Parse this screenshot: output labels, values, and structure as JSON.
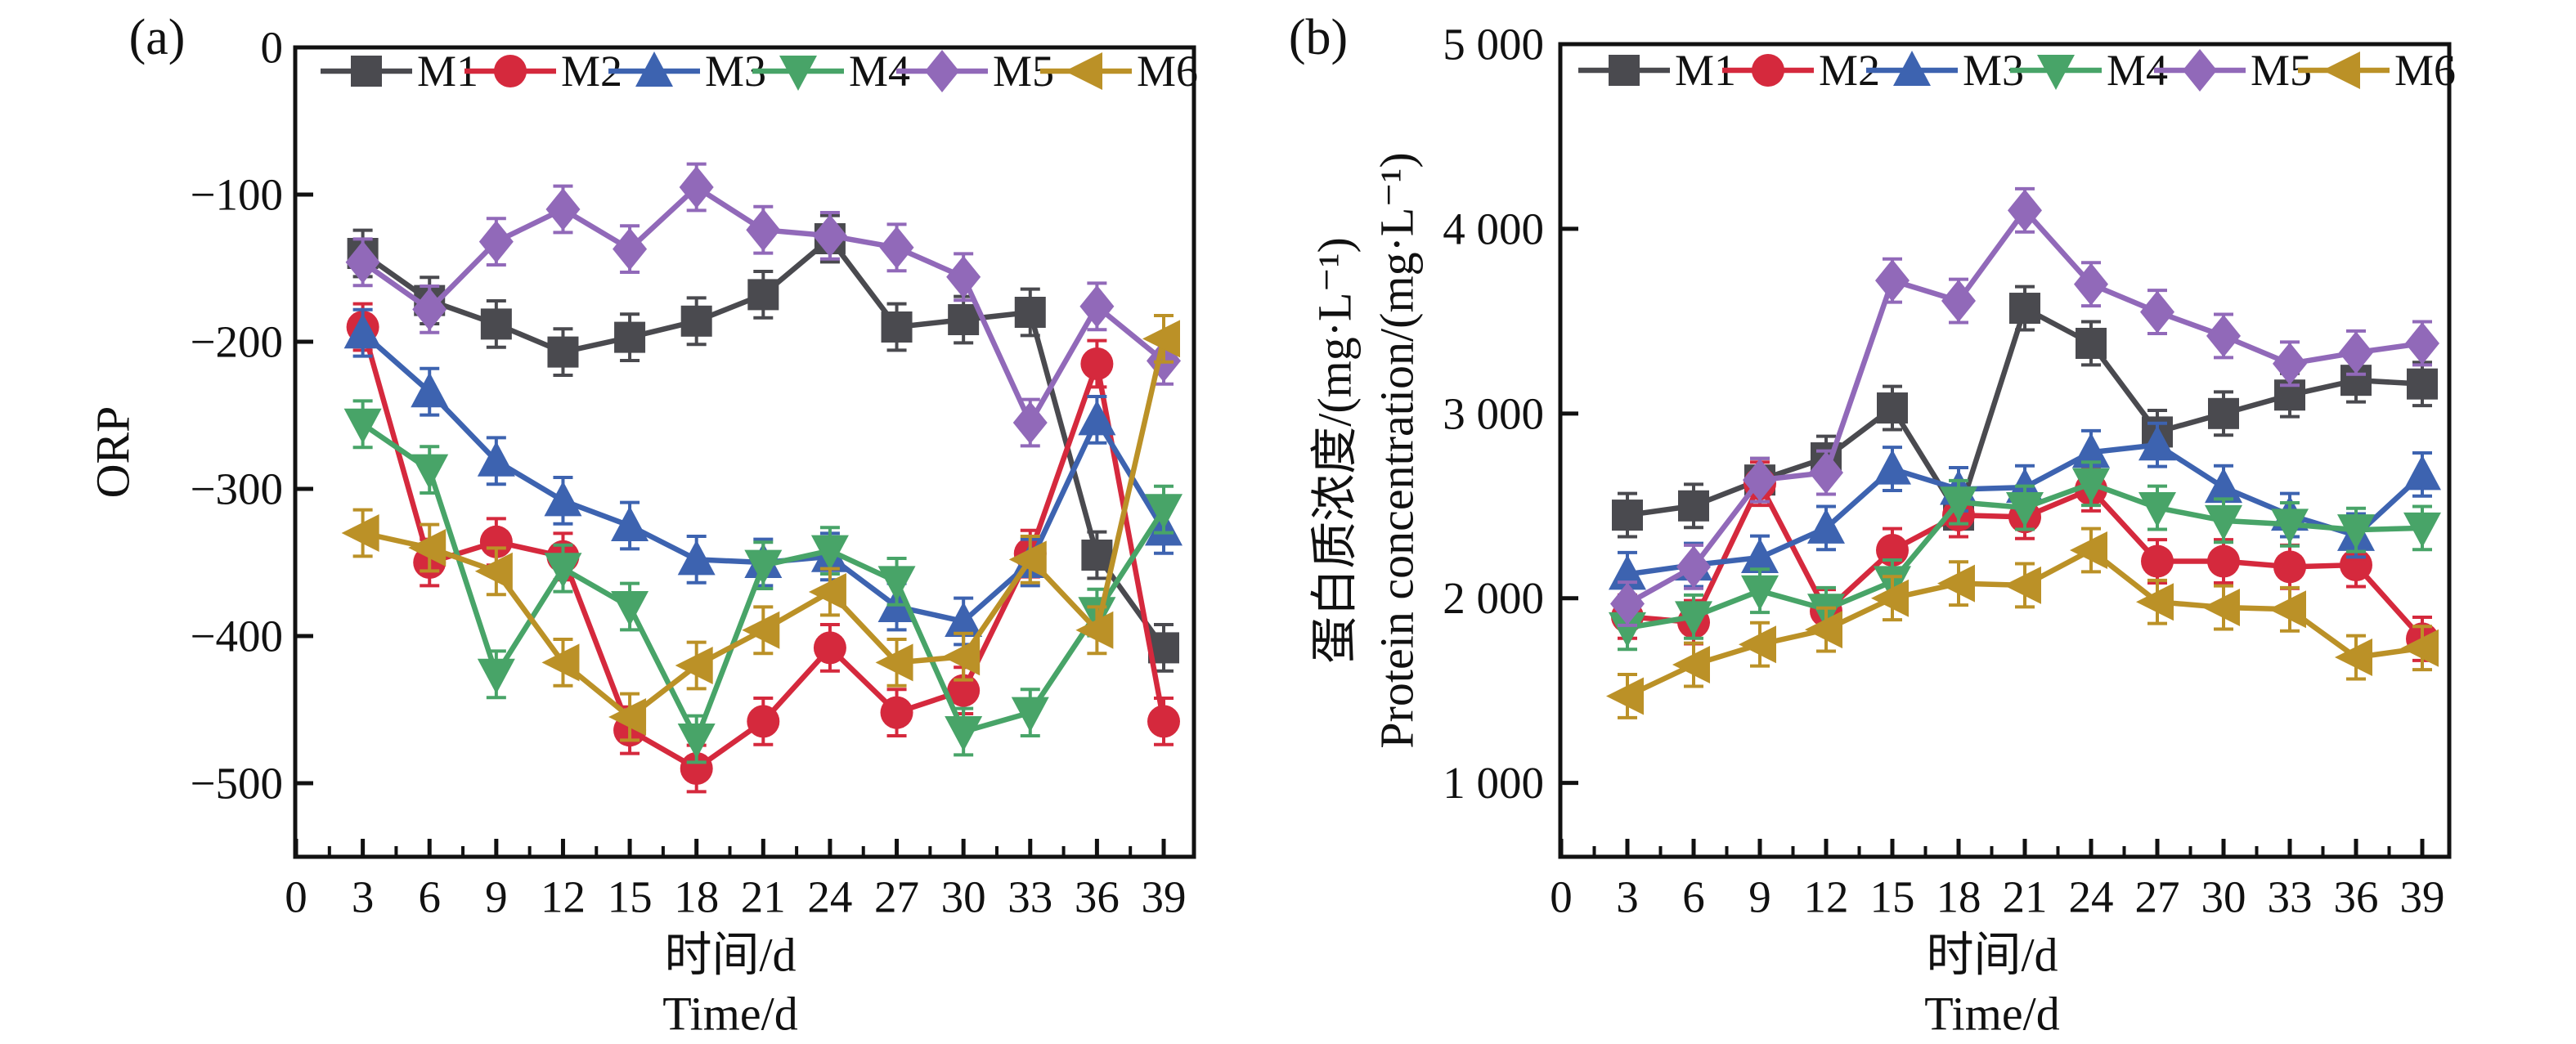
{
  "chart_data": [
    {
      "type": "line",
      "panel_label": "(a)",
      "x": [
        3,
        6,
        9,
        12,
        15,
        18,
        21,
        24,
        27,
        30,
        33,
        36,
        39
      ],
      "xticks": [
        0,
        3,
        6,
        9,
        12,
        15,
        18,
        21,
        24,
        27,
        30,
        33,
        36,
        39
      ],
      "xtick_labels": [
        "0",
        "3",
        "6",
        "9",
        "12",
        "15",
        "18",
        "21",
        "24",
        "27",
        "30",
        "33",
        "36",
        "39"
      ],
      "xlabel_cn": "时间/d",
      "xlabel_en": "Time/d",
      "ylabel": "ORP",
      "ylim": [
        -550,
        0
      ],
      "yticks": [
        0,
        -100,
        -200,
        -300,
        -400,
        -500
      ],
      "ytick_labels": [
        "0",
        "−100",
        "−200",
        "−300",
        "−400",
        "−500"
      ],
      "grid": false,
      "legend_position": "top-inside",
      "error_bar": 8,
      "series": [
        {
          "name": "M1",
          "color": "#4a4a4f",
          "marker": "square",
          "values": [
            -140,
            -172,
            -188,
            -207,
            -197,
            -186,
            -168,
            -130,
            -190,
            -185,
            -180,
            -345,
            -408
          ]
        },
        {
          "name": "M2",
          "color": "#d5293d",
          "marker": "circle",
          "values": [
            -190,
            -350,
            -336,
            -346,
            -464,
            -490,
            -458,
            -408,
            -452,
            -437,
            -344,
            -215,
            -458
          ]
        },
        {
          "name": "M3",
          "color": "#3d63b0",
          "marker": "triangle-up",
          "values": [
            -194,
            -234,
            -281,
            -308,
            -325,
            -348,
            -350,
            -346,
            -380,
            -390,
            -350,
            -253,
            -328
          ]
        },
        {
          "name": "M4",
          "color": "#48a468",
          "marker": "triangle-down",
          "values": [
            -256,
            -287,
            -426,
            -354,
            -380,
            -470,
            -352,
            -342,
            -363,
            -465,
            -452,
            -384,
            -314
          ]
        },
        {
          "name": "M5",
          "color": "#9169b9",
          "marker": "diamond",
          "values": [
            -146,
            -178,
            -132,
            -110,
            -137,
            -95,
            -124,
            -128,
            -136,
            -156,
            -255,
            -176,
            -213
          ]
        },
        {
          "name": "M6",
          "color": "#bb9127",
          "marker": "triangle-left",
          "values": [
            -330,
            -340,
            -356,
            -418,
            -455,
            -420,
            -396,
            -370,
            -418,
            -414,
            -348,
            -396,
            -198
          ]
        }
      ]
    },
    {
      "type": "line",
      "panel_label": "(b)",
      "x": [
        3,
        6,
        9,
        12,
        15,
        18,
        21,
        24,
        27,
        30,
        33,
        36,
        39
      ],
      "xticks": [
        0,
        3,
        6,
        9,
        12,
        15,
        18,
        21,
        24,
        27,
        30,
        33,
        36,
        39
      ],
      "xtick_labels": [
        "0",
        "3",
        "6",
        "9",
        "12",
        "15",
        "18",
        "21",
        "24",
        "27",
        "30",
        "33",
        "36",
        "39"
      ],
      "xlabel_cn": "时间/d",
      "xlabel_en": "Time/d",
      "ylabel_cn": "蛋白质浓度/(mg·L⁻¹)",
      "ylabel_en": "Protein concentration/(mg·L⁻¹)",
      "ylim": [
        600,
        5000
      ],
      "yticks": [
        5000,
        4000,
        3000,
        2000,
        1000
      ],
      "ytick_labels": [
        "5 000",
        "4 000",
        "3 000",
        "2 000",
        "1 000"
      ],
      "grid": false,
      "legend_position": "top-inside",
      "error_bar": 55,
      "series": [
        {
          "name": "M1",
          "color": "#4a4a4f",
          "marker": "square",
          "values": [
            2450,
            2500,
            2640,
            2760,
            3030,
            2450,
            3570,
            3380,
            2900,
            3000,
            3100,
            3180,
            3160
          ]
        },
        {
          "name": "M2",
          "color": "#d5293d",
          "marker": "circle",
          "values": [
            1900,
            1870,
            2620,
            1930,
            2260,
            2450,
            2440,
            2590,
            2200,
            2200,
            2170,
            2180,
            1780
          ]
        },
        {
          "name": "M3",
          "color": "#3d63b0",
          "marker": "triangle-up",
          "values": [
            2130,
            2180,
            2220,
            2380,
            2700,
            2590,
            2600,
            2790,
            2830,
            2600,
            2450,
            2340,
            2670
          ]
        },
        {
          "name": "M4",
          "color": "#48a468",
          "marker": "triangle-down",
          "values": [
            1840,
            1900,
            2040,
            1940,
            2090,
            2520,
            2490,
            2620,
            2490,
            2420,
            2400,
            2370,
            2380
          ]
        },
        {
          "name": "M5",
          "color": "#9169b9",
          "marker": "diamond",
          "values": [
            1970,
            2170,
            2640,
            2680,
            3720,
            3610,
            4100,
            3700,
            3550,
            3420,
            3270,
            3330,
            3380
          ]
        },
        {
          "name": "M6",
          "color": "#bb9127",
          "marker": "triangle-left",
          "values": [
            1470,
            1640,
            1750,
            1830,
            2000,
            2080,
            2070,
            2260,
            1980,
            1950,
            1940,
            1680,
            1730
          ]
        }
      ]
    }
  ]
}
